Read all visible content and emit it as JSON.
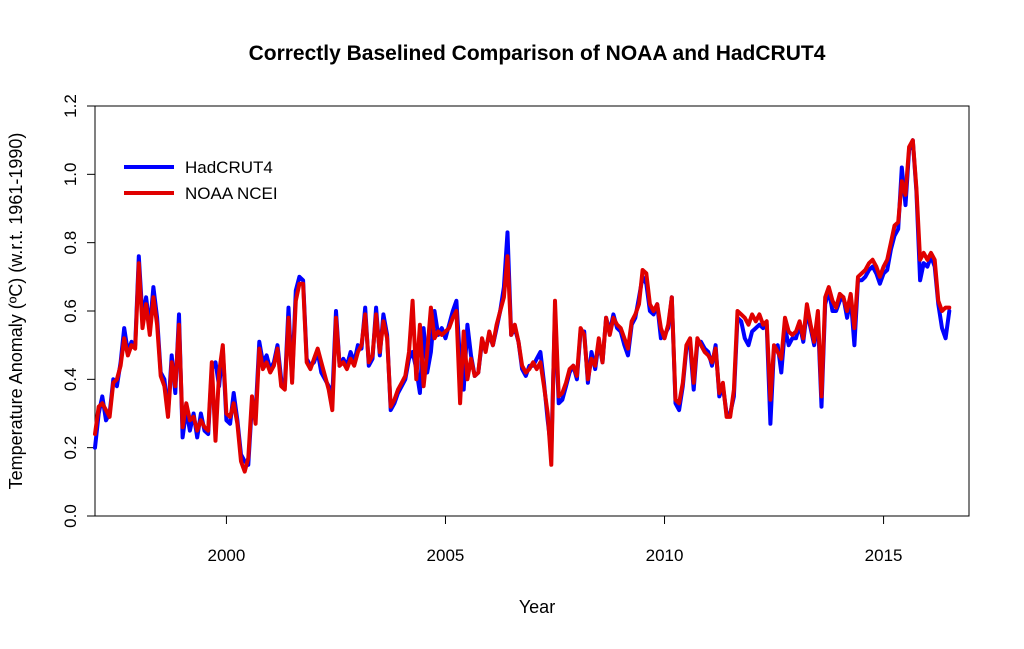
{
  "chart_data": {
    "type": "line",
    "title": "Correctly Baselined Comparison of NOAA and HadCRUT4",
    "xlabel": "Year",
    "ylabel": "Temperature Anomaly (ºC) (w.r.t. 1961-1990)",
    "xlim": [
      1997.0,
      2016.95
    ],
    "ylim": [
      0,
      1.2
    ],
    "x_ticks": [
      2000,
      2005,
      2010,
      2015
    ],
    "y_ticks": [
      0.0,
      0.2,
      0.4,
      0.6,
      0.8,
      1.0,
      1.2
    ],
    "y_tick_labels": [
      "0.0",
      "0.2",
      "0.4",
      "0.6",
      "0.8",
      "1.0",
      "1.2"
    ],
    "grid": false,
    "legend": {
      "placement": "top-left"
    },
    "x_start": 1997.0,
    "x_step": 0.0833333,
    "series": [
      {
        "name": "HadCRUT4",
        "color": "#0000ff",
        "values": [
          0.2,
          0.3,
          0.35,
          0.28,
          0.3,
          0.4,
          0.38,
          0.45,
          0.55,
          0.48,
          0.51,
          0.5,
          0.76,
          0.58,
          0.64,
          0.55,
          0.67,
          0.58,
          0.42,
          0.4,
          0.3,
          0.47,
          0.36,
          0.59,
          0.23,
          0.31,
          0.25,
          0.3,
          0.23,
          0.3,
          0.25,
          0.24,
          0.43,
          0.45,
          0.38,
          0.49,
          0.28,
          0.27,
          0.36,
          0.28,
          0.18,
          0.16,
          0.15,
          0.33,
          0.3,
          0.51,
          0.45,
          0.47,
          0.43,
          0.45,
          0.5,
          0.4,
          0.38,
          0.61,
          0.4,
          0.66,
          0.7,
          0.69,
          0.46,
          0.44,
          0.45,
          0.48,
          0.42,
          0.4,
          0.38,
          0.35,
          0.6,
          0.44,
          0.46,
          0.44,
          0.48,
          0.45,
          0.5,
          0.49,
          0.61,
          0.44,
          0.46,
          0.61,
          0.47,
          0.59,
          0.53,
          0.31,
          0.33,
          0.36,
          0.38,
          0.4,
          0.46,
          0.48,
          0.43,
          0.36,
          0.55,
          0.42,
          0.48,
          0.6,
          0.53,
          0.55,
          0.52,
          0.56,
          0.6,
          0.63,
          0.45,
          0.37,
          0.56,
          0.47,
          0.41,
          0.42,
          0.51,
          0.49,
          0.53,
          0.5,
          0.55,
          0.6,
          0.67,
          0.83,
          0.53,
          0.55,
          0.51,
          0.43,
          0.41,
          0.44,
          0.44,
          0.46,
          0.48,
          0.39,
          0.28,
          0.19,
          0.6,
          0.33,
          0.34,
          0.38,
          0.42,
          0.44,
          0.4,
          0.54,
          0.54,
          0.39,
          0.48,
          0.43,
          0.51,
          0.45,
          0.58,
          0.54,
          0.59,
          0.55,
          0.54,
          0.5,
          0.47,
          0.56,
          0.58,
          0.64,
          0.7,
          0.68,
          0.6,
          0.59,
          0.62,
          0.52,
          0.53,
          0.55,
          0.64,
          0.33,
          0.31,
          0.38,
          0.49,
          0.5,
          0.37,
          0.51,
          0.51,
          0.49,
          0.48,
          0.44,
          0.5,
          0.35,
          0.38,
          0.3,
          0.3,
          0.35,
          0.58,
          0.57,
          0.52,
          0.5,
          0.54,
          0.55,
          0.56,
          0.55,
          0.56,
          0.27,
          0.49,
          0.5,
          0.42,
          0.55,
          0.5,
          0.52,
          0.52,
          0.56,
          0.51,
          0.6,
          0.55,
          0.5,
          0.58,
          0.32,
          0.62,
          0.66,
          0.6,
          0.6,
          0.63,
          0.64,
          0.58,
          0.64,
          0.5,
          0.69,
          0.69,
          0.7,
          0.72,
          0.73,
          0.71,
          0.68,
          0.71,
          0.72,
          0.78,
          0.82,
          0.84,
          1.02,
          0.91,
          1.07,
          1.1,
          0.95,
          0.69,
          0.74,
          0.73,
          0.76,
          0.73,
          0.62,
          0.55,
          0.52,
          0.6
        ]
      },
      {
        "name": "NOAA NCEI",
        "color": "#e00000",
        "values": [
          0.24,
          0.32,
          0.33,
          0.31,
          0.29,
          0.39,
          0.4,
          0.44,
          0.52,
          0.47,
          0.5,
          0.49,
          0.74,
          0.55,
          0.62,
          0.53,
          0.64,
          0.56,
          0.41,
          0.38,
          0.29,
          0.45,
          0.38,
          0.56,
          0.26,
          0.33,
          0.28,
          0.29,
          0.25,
          0.28,
          0.26,
          0.25,
          0.45,
          0.22,
          0.42,
          0.5,
          0.3,
          0.29,
          0.33,
          0.27,
          0.16,
          0.13,
          0.17,
          0.35,
          0.27,
          0.49,
          0.43,
          0.45,
          0.42,
          0.44,
          0.49,
          0.38,
          0.37,
          0.58,
          0.39,
          0.63,
          0.68,
          0.68,
          0.45,
          0.43,
          0.46,
          0.49,
          0.45,
          0.41,
          0.37,
          0.31,
          0.58,
          0.44,
          0.45,
          0.43,
          0.46,
          0.44,
          0.48,
          0.5,
          0.59,
          0.45,
          0.47,
          0.59,
          0.48,
          0.57,
          0.52,
          0.32,
          0.34,
          0.37,
          0.39,
          0.41,
          0.48,
          0.63,
          0.4,
          0.56,
          0.38,
          0.48,
          0.61,
          0.52,
          0.54,
          0.53,
          0.54,
          0.55,
          0.58,
          0.6,
          0.33,
          0.54,
          0.4,
          0.46,
          0.41,
          0.42,
          0.52,
          0.48,
          0.54,
          0.5,
          0.56,
          0.6,
          0.64,
          0.76,
          0.53,
          0.56,
          0.51,
          0.44,
          0.42,
          0.43,
          0.45,
          0.43,
          0.45,
          0.38,
          0.3,
          0.15,
          0.63,
          0.35,
          0.36,
          0.39,
          0.43,
          0.44,
          0.41,
          0.55,
          0.53,
          0.4,
          0.46,
          0.44,
          0.52,
          0.45,
          0.58,
          0.53,
          0.58,
          0.56,
          0.55,
          0.52,
          0.49,
          0.57,
          0.59,
          0.62,
          0.72,
          0.71,
          0.62,
          0.6,
          0.62,
          0.55,
          0.52,
          0.56,
          0.64,
          0.34,
          0.33,
          0.39,
          0.5,
          0.52,
          0.39,
          0.52,
          0.5,
          0.48,
          0.47,
          0.45,
          0.49,
          0.36,
          0.39,
          0.29,
          0.29,
          0.37,
          0.6,
          0.59,
          0.58,
          0.56,
          0.59,
          0.57,
          0.59,
          0.56,
          0.57,
          0.34,
          0.5,
          0.48,
          0.46,
          0.58,
          0.54,
          0.53,
          0.54,
          0.57,
          0.52,
          0.62,
          0.56,
          0.51,
          0.6,
          0.35,
          0.64,
          0.67,
          0.63,
          0.61,
          0.65,
          0.64,
          0.6,
          0.65,
          0.55,
          0.7,
          0.71,
          0.72,
          0.74,
          0.75,
          0.73,
          0.7,
          0.73,
          0.75,
          0.8,
          0.85,
          0.86,
          0.98,
          0.94,
          1.08,
          1.1,
          0.96,
          0.75,
          0.77,
          0.75,
          0.77,
          0.75,
          0.63,
          0.6,
          0.61,
          0.61
        ]
      }
    ]
  }
}
